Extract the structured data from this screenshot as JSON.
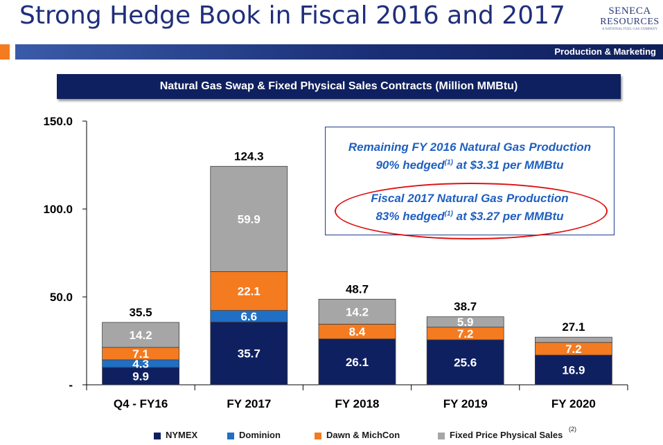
{
  "header": {
    "title": "Strong Hedge Book in Fiscal 2016 and 2017",
    "section_label": "Production & Marketing",
    "logo": {
      "line1": "SENECA",
      "line2": "RESOURCES",
      "line3": "A NATIONAL FUEL GAS COMPANY"
    }
  },
  "callout": {
    "line1": "Remaining FY 2016 Natural Gas Production",
    "line2_pre": "90% hedged",
    "line2_sup": "(1)",
    "line2_post": " at $3.31 per MMBtu",
    "line3": "Fiscal 2017 Natural Gas Production",
    "line4_pre": "83% hedged",
    "line4_sup": "(1)",
    "line4_post": " at $3.27 per MMBtu"
  },
  "legend_note": "(2)",
  "colors": {
    "NYMEX": "#0f2060",
    "Dominion": "#1f6fc5",
    "Dawn & MichCon": "#f47b20",
    "Fixed Price Physical Sales": "#a6a6a6",
    "title_bar": "#0f2060",
    "callout_text": "#1f5fbf",
    "oval": "#e01010"
  },
  "chart_data": {
    "type": "bar",
    "stacked": true,
    "title": "Natural Gas Swap & Fixed Physical Sales Contracts (Million MMBtu)",
    "categories": [
      "Q4 - FY16",
      "FY 2017",
      "FY 2018",
      "FY 2019",
      "FY 2020"
    ],
    "series": [
      {
        "name": "NYMEX",
        "values": [
          9.9,
          35.7,
          26.1,
          25.6,
          16.9
        ]
      },
      {
        "name": "Dominion",
        "values": [
          4.3,
          6.6,
          0,
          0,
          0
        ]
      },
      {
        "name": "Dawn & MichCon",
        "values": [
          7.1,
          22.1,
          8.4,
          7.2,
          7.2
        ]
      },
      {
        "name": "Fixed Price Physical Sales",
        "values": [
          14.2,
          59.9,
          14.2,
          5.9,
          3.0
        ]
      }
    ],
    "segment_labels": [
      [
        "9.9",
        "4.3",
        "7.1",
        "14.2"
      ],
      [
        "35.7",
        "6.6",
        "22.1",
        "59.9"
      ],
      [
        "26.1",
        "",
        "8.4",
        "14.2"
      ],
      [
        "25.6",
        "",
        "7.2",
        "5.9"
      ],
      [
        "16.9",
        "",
        "7.2",
        ""
      ]
    ],
    "totals": [
      "35.5",
      "124.3",
      "48.7",
      "38.7",
      "27.1"
    ],
    "ylim": [
      0,
      150
    ],
    "yticks": [
      0,
      50,
      100,
      150
    ],
    "ytick_labels": [
      "-",
      "50.0",
      "100.0",
      "150.0"
    ],
    "xlabel": "",
    "ylabel": "",
    "grid": false,
    "legend_position": "bottom"
  }
}
